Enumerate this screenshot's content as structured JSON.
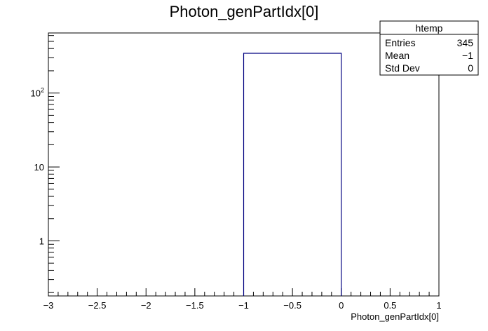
{
  "chart_data": {
    "type": "bar",
    "title": "Photon_genPartIdx[0]",
    "xlabel": "Photon_genPartIdx[0]",
    "ylabel": "",
    "x_range": [
      -3,
      1
    ],
    "y_scale": "log",
    "y_range": [
      0.18,
      650
    ],
    "x_tick_labels": [
      "−3",
      "−2.5",
      "−2",
      "−1.5",
      "−1",
      "−0.5",
      "0",
      "0.5",
      "1"
    ],
    "x_tick_values": [
      -3,
      -2.5,
      -2,
      -1.5,
      -1,
      -0.5,
      0,
      0.5,
      1
    ],
    "y_tick_values": [
      1,
      10,
      100
    ],
    "bins": [
      {
        "low": -1,
        "high": 0,
        "count": 345
      }
    ],
    "line_color": "#000080",
    "grid": false,
    "legend": "none",
    "stats": {
      "name": "htemp",
      "rows": [
        {
          "label": "Entries",
          "value": "345"
        },
        {
          "label": "Mean",
          "value": "−1"
        },
        {
          "label": "Std Dev",
          "value": "0"
        }
      ]
    }
  }
}
